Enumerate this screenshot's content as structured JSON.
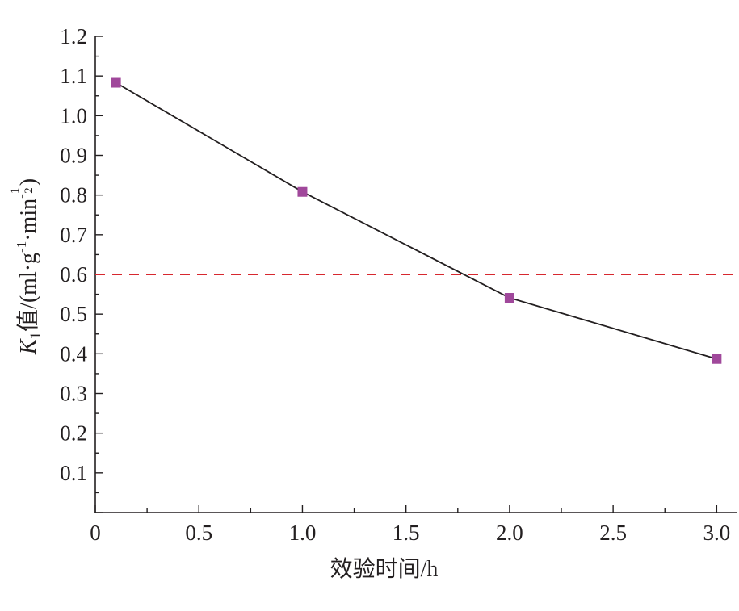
{
  "chart_data": {
    "type": "line",
    "xlabel": "效验时间/h",
    "ylabel": {
      "var": "K",
      "var_sub": "1",
      "text": "值/(ml·g",
      "exp1": "-1",
      "mid": "·min",
      "exp2_prefix": "-",
      "exp2_num": "1",
      "exp2_den": "2",
      "close": ")"
    },
    "xlim": [
      0,
      3.1
    ],
    "ylim": [
      0,
      1.2
    ],
    "x_ticks": [
      {
        "value": 0,
        "label": "0"
      },
      {
        "value": 0.5,
        "label": "0.5"
      },
      {
        "value": 1.0,
        "label": "1.0"
      },
      {
        "value": 1.5,
        "label": "1.5"
      },
      {
        "value": 2.0,
        "label": "2.0"
      },
      {
        "value": 2.5,
        "label": "2.5"
      },
      {
        "value": 3.0,
        "label": "3.0"
      }
    ],
    "y_ticks": [
      {
        "value": 0.1,
        "label": "0.1"
      },
      {
        "value": 0.2,
        "label": "0.2"
      },
      {
        "value": 0.3,
        "label": "0.3"
      },
      {
        "value": 0.4,
        "label": "0.4"
      },
      {
        "value": 0.5,
        "label": "0.5"
      },
      {
        "value": 0.6,
        "label": "0.6"
      },
      {
        "value": 0.7,
        "label": "0.7"
      },
      {
        "value": 0.8,
        "label": "0.8"
      },
      {
        "value": 0.9,
        "label": "0.9"
      },
      {
        "value": 1.0,
        "label": "1.0"
      },
      {
        "value": 1.1,
        "label": "1.1"
      },
      {
        "value": 1.2,
        "label": "1.2"
      }
    ],
    "series": [
      {
        "x": [
          0.1,
          1.0,
          2.0,
          3.0
        ],
        "y": [
          1.083,
          0.808,
          0.541,
          0.387
        ],
        "marker": "square",
        "marker_color": "#a0489b",
        "line_color": "#231f20"
      }
    ],
    "reference_line": {
      "y": 0.6,
      "style": "dashed",
      "color": "#d7282f"
    },
    "grid": false,
    "legend": "none"
  }
}
